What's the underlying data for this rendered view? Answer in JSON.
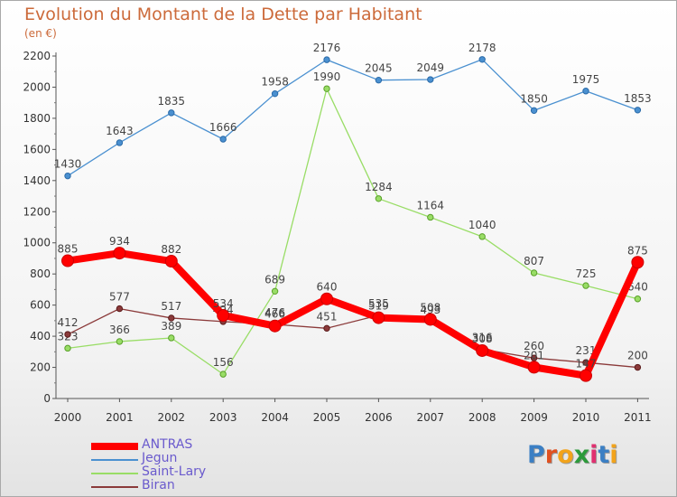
{
  "chart_data": {
    "type": "line",
    "title": "Evolution du Montant de la Dette par Habitant",
    "subtitle": "(en €)",
    "categories": [
      "2000",
      "2001",
      "2002",
      "2003",
      "2004",
      "2005",
      "2006",
      "2007",
      "2008",
      "2009",
      "2010",
      "2011"
    ],
    "ylim": [
      0,
      2200
    ],
    "yticks": [
      0,
      200,
      400,
      600,
      800,
      1000,
      1200,
      1400,
      1600,
      1800,
      2000,
      2200
    ],
    "grid": false,
    "legend_position": "bottom-left",
    "series": [
      {
        "name": "Jegun",
        "color": "#4a90d0",
        "values": [
          1430,
          1643,
          1835,
          1666,
          1958,
          2176,
          2045,
          2049,
          2178,
          1850,
          1975,
          1853
        ],
        "labels": [
          "1430",
          "1643",
          "1835",
          "1666",
          "1958",
          "2176",
          "2045",
          "2049",
          "2178",
          "1850",
          "1975",
          "1853"
        ]
      },
      {
        "name": "Saint-Lary",
        "color": "#99dd66",
        "values": [
          323,
          366,
          389,
          156,
          689,
          1990,
          1284,
          1164,
          1040,
          807,
          725,
          640
        ],
        "labels": [
          "323",
          "366",
          "389",
          "156",
          "689",
          "1990",
          "1284",
          "1164",
          "1040",
          "807",
          "725",
          "640"
        ]
      },
      {
        "name": "Biran",
        "color": "#8b3a3a",
        "values": [
          412,
          577,
          517,
          494,
          476,
          451,
          535,
          493,
          316,
          260,
          231,
          200
        ],
        "labels": [
          "412",
          "577",
          "517",
          "494",
          "476",
          "451",
          "535",
          "493",
          "316",
          "260",
          "231",
          "200"
        ]
      },
      {
        "name": "ANTRAS",
        "color": "#ff0000",
        "values": [
          885,
          934,
          882,
          534,
          466,
          640,
          519,
          508,
          308,
          201,
          147,
          875
        ],
        "labels": [
          "885",
          "934",
          "882",
          "534",
          "466",
          "640",
          "519",
          "508",
          "308",
          "201",
          "147",
          "875"
        ]
      }
    ]
  },
  "legend": [
    {
      "name": "ANTRAS",
      "color": "#ff0000"
    },
    {
      "name": "Jegun",
      "color": "#4a90d0"
    },
    {
      "name": "Saint-Lary",
      "color": "#99dd66"
    },
    {
      "name": "Biran",
      "color": "#8b3a3a"
    }
  ],
  "logo": {
    "letters": [
      "P",
      "r",
      "o",
      "x",
      "i",
      "t",
      "i"
    ],
    "colors": [
      "#3b7fc4",
      "#e05020",
      "#f2a31b",
      "#2c9a3a",
      "#e03070",
      "#3b7fc4",
      "#f2a31b"
    ]
  }
}
